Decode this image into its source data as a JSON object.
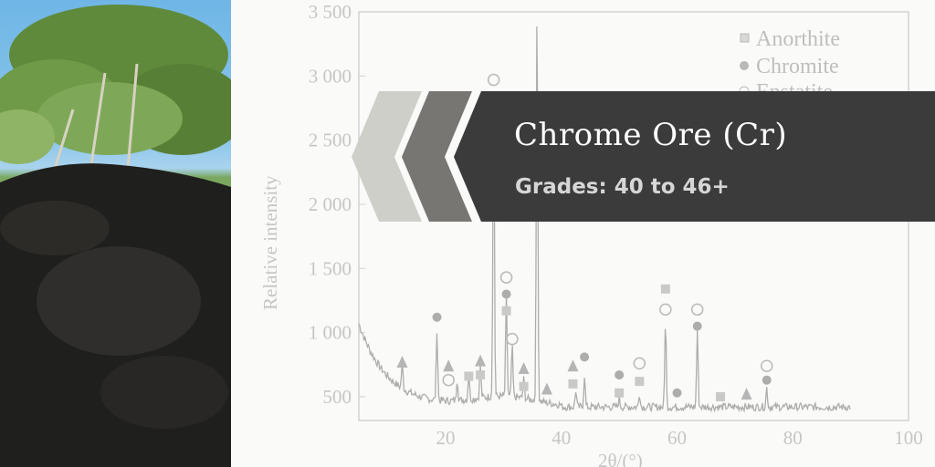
{
  "banner": {
    "title": "Chrome Ore (Cr)",
    "subtitle": "Grades: 40 to 46+",
    "background_color": "#3b3b3b",
    "chevron_colors": [
      "#cfcfc9",
      "#787672"
    ]
  },
  "photo": {
    "subject": "chrome ore stockpile under trees"
  },
  "chart_data": {
    "type": "line",
    "ylabel": "Relative intensity",
    "xlabel": "2θ/(°)",
    "xlim": [
      5,
      100
    ],
    "ylim": [
      315,
      3500
    ],
    "x_ticks": [
      "20",
      "40",
      "60",
      "80",
      "100"
    ],
    "y_ticks": [
      "500",
      "1 000",
      "1 500",
      "2 000",
      "2 500",
      "3 000",
      "3 500"
    ],
    "legend": {
      "placement": "top-right",
      "entries": [
        {
          "marker": "square",
          "label": "Anorthite"
        },
        {
          "marker": "filled-circle",
          "label": "Chromite"
        },
        {
          "marker": "open-circle",
          "label": "Enstatite"
        }
      ]
    },
    "peaks": [
      {
        "x": 12.5,
        "y": 650
      },
      {
        "x": 18.5,
        "y": 1000
      },
      {
        "x": 22,
        "y": 620
      },
      {
        "x": 24,
        "y": 650
      },
      {
        "x": 26,
        "y": 700
      },
      {
        "x": 28.3,
        "y": 2950
      },
      {
        "x": 30.5,
        "y": 1250
      },
      {
        "x": 31.5,
        "y": 850
      },
      {
        "x": 33.5,
        "y": 600
      },
      {
        "x": 35.8,
        "y": 3600
      },
      {
        "x": 42.5,
        "y": 580
      },
      {
        "x": 44,
        "y": 700
      },
      {
        "x": 50,
        "y": 520
      },
      {
        "x": 53.5,
        "y": 560
      },
      {
        "x": 58,
        "y": 1130
      },
      {
        "x": 63.5,
        "y": 1050
      },
      {
        "x": 75.5,
        "y": 600
      }
    ],
    "markers": [
      {
        "x": 12.5,
        "y": 770,
        "shape": "triangle"
      },
      {
        "x": 18.5,
        "y": 1120,
        "shape": "filled-circle"
      },
      {
        "x": 20.5,
        "y": 740,
        "shape": "triangle"
      },
      {
        "x": 20.5,
        "y": 630,
        "shape": "open-circle"
      },
      {
        "x": 24,
        "y": 660,
        "shape": "square"
      },
      {
        "x": 26,
        "y": 780,
        "shape": "triangle"
      },
      {
        "x": 26,
        "y": 670,
        "shape": "square"
      },
      {
        "x": 28.3,
        "y": 2970,
        "shape": "open-circle"
      },
      {
        "x": 30.5,
        "y": 1430,
        "shape": "open-circle"
      },
      {
        "x": 30.5,
        "y": 1300,
        "shape": "filled-circle"
      },
      {
        "x": 30.5,
        "y": 1170,
        "shape": "square"
      },
      {
        "x": 31.5,
        "y": 950,
        "shape": "open-circle"
      },
      {
        "x": 33.5,
        "y": 720,
        "shape": "triangle"
      },
      {
        "x": 33.5,
        "y": 580,
        "shape": "square"
      },
      {
        "x": 37.5,
        "y": 560,
        "shape": "triangle"
      },
      {
        "x": 42,
        "y": 740,
        "shape": "triangle"
      },
      {
        "x": 42,
        "y": 600,
        "shape": "square"
      },
      {
        "x": 44,
        "y": 810,
        "shape": "filled-circle"
      },
      {
        "x": 50,
        "y": 670,
        "shape": "filled-circle"
      },
      {
        "x": 50,
        "y": 530,
        "shape": "square"
      },
      {
        "x": 53.5,
        "y": 760,
        "shape": "open-circle"
      },
      {
        "x": 53.5,
        "y": 620,
        "shape": "square"
      },
      {
        "x": 58,
        "y": 1340,
        "shape": "square"
      },
      {
        "x": 58,
        "y": 1180,
        "shape": "open-circle"
      },
      {
        "x": 60,
        "y": 530,
        "shape": "filled-circle"
      },
      {
        "x": 63.5,
        "y": 1180,
        "shape": "open-circle"
      },
      {
        "x": 63.5,
        "y": 1050,
        "shape": "filled-circle"
      },
      {
        "x": 67.5,
        "y": 500,
        "shape": "square"
      },
      {
        "x": 72,
        "y": 520,
        "shape": "triangle"
      },
      {
        "x": 75.5,
        "y": 740,
        "shape": "open-circle"
      },
      {
        "x": 75.5,
        "y": 630,
        "shape": "filled-circle"
      }
    ]
  }
}
